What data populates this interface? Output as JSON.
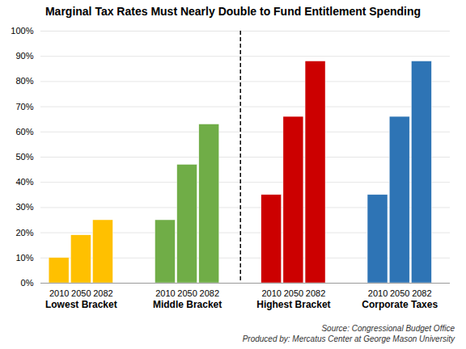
{
  "chart_data": {
    "type": "bar",
    "title": "Marginal Tax Rates Must Nearly Double to Fund Entitlement Spending",
    "categories": [
      "2010",
      "2050",
      "2082"
    ],
    "series": [
      {
        "name": "Lowest Bracket",
        "color": "#FFC000",
        "values": [
          0.1,
          0.19,
          0.25
        ]
      },
      {
        "name": "Middle Bracket",
        "color": "#70AD47",
        "values": [
          0.25,
          0.47,
          0.63
        ]
      },
      {
        "name": "Highest Bracket",
        "color": "#CC0000",
        "values": [
          0.35,
          0.66,
          0.88
        ]
      },
      {
        "name": "Corporate Taxes",
        "color": "#2E74B5",
        "values": [
          0.35,
          0.66,
          0.88
        ]
      }
    ],
    "ylim": [
      0,
      1.0
    ],
    "yticks": [
      {
        "value": 0.0,
        "label": "0%"
      },
      {
        "value": 0.1,
        "label": "10%"
      },
      {
        "value": 0.2,
        "label": "20%"
      },
      {
        "value": 0.3,
        "label": "30%"
      },
      {
        "value": 0.4,
        "label": "40%"
      },
      {
        "value": 0.5,
        "label": "50%"
      },
      {
        "value": 0.6,
        "label": "60%"
      },
      {
        "value": 0.7,
        "label": "70%"
      },
      {
        "value": 0.8,
        "label": "80%"
      },
      {
        "value": 0.9,
        "label": "90%"
      },
      {
        "value": 1.0,
        "label": "100%"
      }
    ],
    "grid": true,
    "annotations": [
      "Source: Congressional Budget Office",
      "Produced by: Mercatus Center at George Mason University"
    ]
  }
}
